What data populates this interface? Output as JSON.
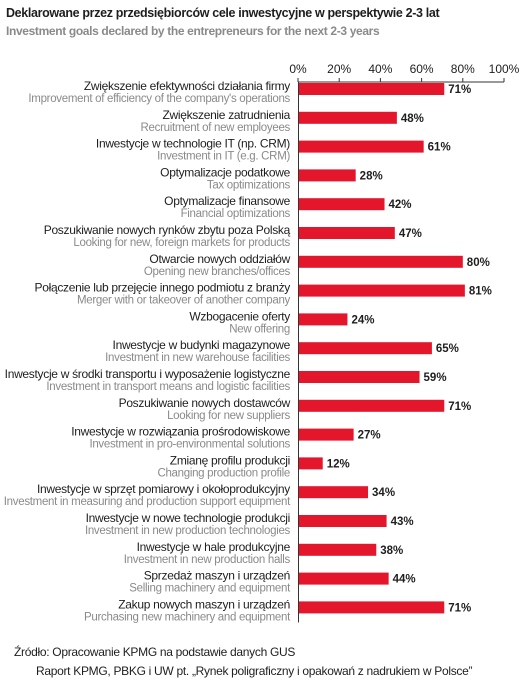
{
  "title": "Deklarowane przez przedsiębiorców cele inwestycyjne w perspektywie 2-3 lat",
  "subtitle": "Investment goals declared by the entrepreneurs for the next 2-3 years",
  "source": {
    "line1": "Źródło: Opracowanie KPMG na podstawie danych GUS",
    "line2": "Raport KPMG, PBKG i UW pt. „Rynek poligraficzny i opakowań z nadrukiem w Polsce”"
  },
  "chart_data": {
    "type": "bar",
    "orientation": "horizontal",
    "title": "Deklarowane przez przedsiębiorców cele inwestycyjne w perspektywie 2-3 lat",
    "subtitle": "Investment goals declared by the entrepreneurs for the next 2-3 years",
    "xlim": [
      0,
      100
    ],
    "x_ticks": [
      "0%",
      "20%",
      "40%",
      "60%",
      "80%",
      "100%"
    ],
    "tick_values": [
      0,
      20,
      40,
      60,
      80,
      100
    ],
    "axis_position": "top",
    "grid": false,
    "bar_color": "#e3162b",
    "categories": [
      {
        "pl": "Zwiększenie efektywności działania firmy",
        "en": "Improvement of efficiency of the company's operations",
        "value": 71,
        "label": "71%"
      },
      {
        "pl": "Zwiększenie zatrudnienia",
        "en": "Recruitment of new employees",
        "value": 48,
        "label": "48%"
      },
      {
        "pl": "Inwestycje w technologie IT (np. CRM)",
        "en": "Investment in IT (e.g. CRM)",
        "value": 61,
        "label": "61%"
      },
      {
        "pl": "Optymalizacje podatkowe",
        "en": "Tax optimizations",
        "value": 28,
        "label": "28%"
      },
      {
        "pl": "Optymalizacje finansowe",
        "en": "Financial optimizations",
        "value": 42,
        "label": "42%"
      },
      {
        "pl": "Poszukiwanie nowych rynków zbytu poza Polską",
        "en": "Looking for new, foreign markets for products",
        "value": 47,
        "label": "47%"
      },
      {
        "pl": "Otwarcie nowych oddziałów",
        "en": "Opening new branches/offices",
        "value": 80,
        "label": "80%"
      },
      {
        "pl": "Połączenie lub przejęcie innego podmiotu z branży",
        "en": "Merger with or takeover of another company",
        "value": 81,
        "label": "81%"
      },
      {
        "pl": "Wzbogacenie oferty",
        "en": "New offering",
        "value": 24,
        "label": "24%"
      },
      {
        "pl": "Inwestycje w budynki magazynowe",
        "en": "Investment in new warehouse facilities",
        "value": 65,
        "label": "65%"
      },
      {
        "pl": "Inwestycje w środki transportu i wyposażenie logistyczne",
        "en": "Investment in transport means and logistic facilities",
        "value": 59,
        "label": "59%"
      },
      {
        "pl": "Poszukiwanie nowych dostawców",
        "en": "Looking for new suppliers",
        "value": 71,
        "label": "71%"
      },
      {
        "pl": "Inwestycje w rozwiązania prośrodowiskowe",
        "en": "Investment in pro-environmental solutions",
        "value": 27,
        "label": "27%"
      },
      {
        "pl": "Zmianę profilu produkcji",
        "en": "Changing production profile",
        "value": 12,
        "label": "12%"
      },
      {
        "pl": "Inwestycje w sprzęt pomiarowy i okołoprodukcyjny",
        "en": "Investment in measuring and production support equipment",
        "value": 34,
        "label": "34%"
      },
      {
        "pl": "Inwestycje w nowe technologie produkcji",
        "en": "Investment in new production technologies",
        "value": 43,
        "label": "43%"
      },
      {
        "pl": "Inwestycje w hale produkcyjne",
        "en": "Investment in new production halls",
        "value": 38,
        "label": "38%"
      },
      {
        "pl": "Sprzedaż maszyn i urządzeń",
        "en": "Selling machinery and equipment",
        "value": 44,
        "label": "44%"
      },
      {
        "pl": "Zakup nowych maszyn i urządzeń",
        "en": "Purchasing new machinery and equipment",
        "value": 71,
        "label": "71%"
      }
    ]
  }
}
